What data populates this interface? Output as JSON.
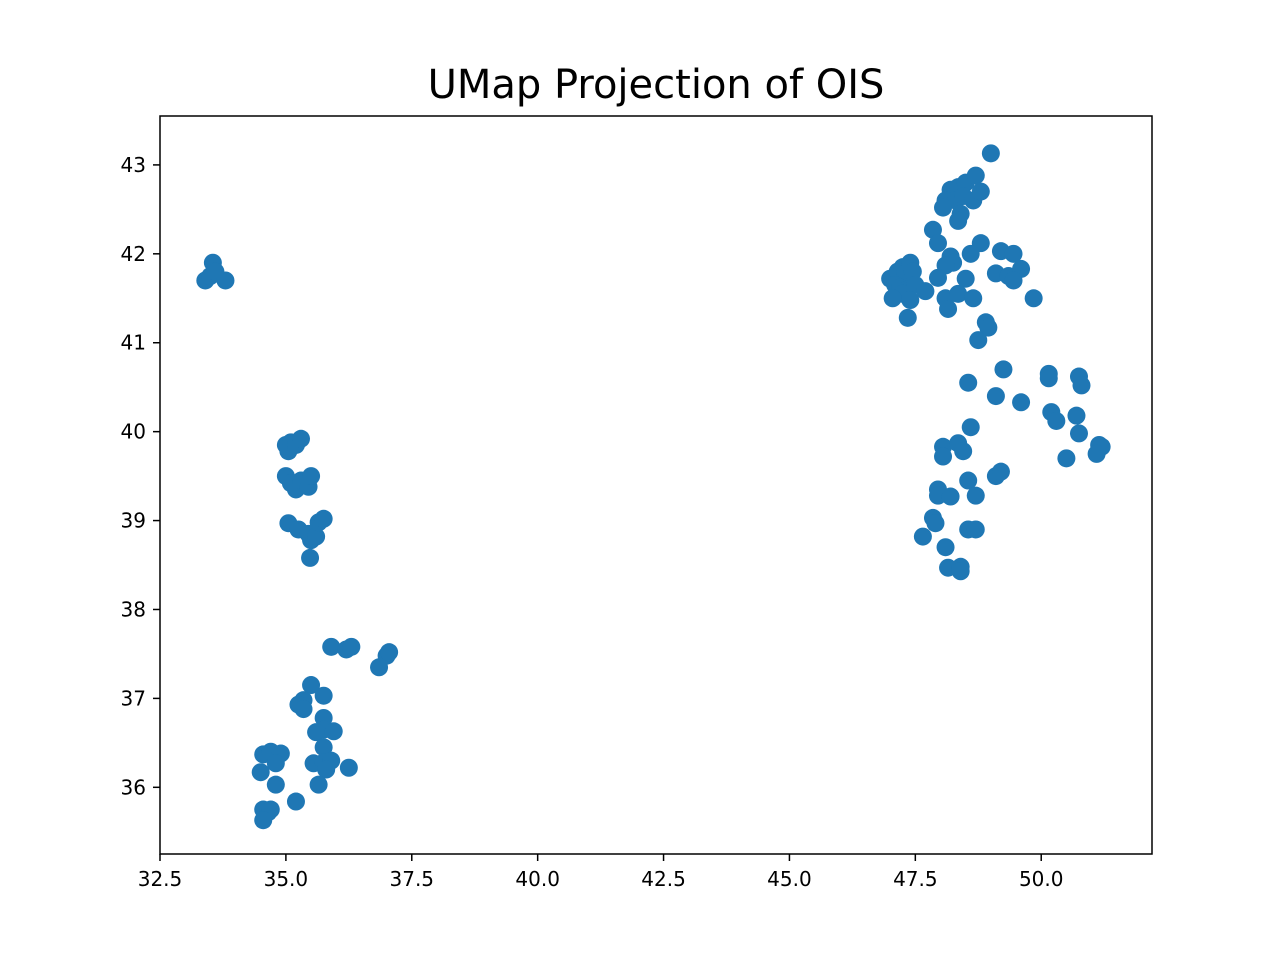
{
  "chart_data": {
    "type": "scatter",
    "title": "UMap Projection of OIS",
    "xlabel": "",
    "ylabel": "",
    "xlim": [
      32.5,
      52.2
    ],
    "ylim": [
      35.25,
      43.55
    ],
    "xticks": [
      "32.5",
      "35.0",
      "37.5",
      "40.0",
      "42.5",
      "45.0",
      "47.5",
      "50.0"
    ],
    "yticks": [
      "36",
      "37",
      "38",
      "39",
      "40",
      "41",
      "42",
      "43"
    ],
    "grid": false,
    "marker_color": "#1f77b4",
    "points": [
      [
        33.4,
        41.7
      ],
      [
        33.5,
        41.75
      ],
      [
        33.55,
        41.9
      ],
      [
        33.6,
        41.8
      ],
      [
        33.8,
        41.7
      ],
      [
        35.0,
        39.85
      ],
      [
        35.05,
        39.78
      ],
      [
        35.1,
        39.88
      ],
      [
        35.2,
        39.85
      ],
      [
        35.3,
        39.92
      ],
      [
        35.0,
        39.5
      ],
      [
        35.1,
        39.42
      ],
      [
        35.2,
        39.35
      ],
      [
        35.3,
        39.45
      ],
      [
        35.45,
        39.38
      ],
      [
        35.5,
        39.5
      ],
      [
        35.05,
        38.97
      ],
      [
        35.25,
        38.9
      ],
      [
        35.45,
        38.85
      ],
      [
        35.5,
        38.78
      ],
      [
        35.6,
        38.82
      ],
      [
        35.65,
        38.98
      ],
      [
        35.75,
        39.02
      ],
      [
        35.48,
        38.58
      ],
      [
        35.5,
        37.15
      ],
      [
        35.35,
        36.98
      ],
      [
        35.25,
        36.93
      ],
      [
        35.35,
        36.88
      ],
      [
        35.75,
        37.03
      ],
      [
        35.75,
        36.78
      ],
      [
        35.75,
        36.65
      ],
      [
        35.6,
        36.62
      ],
      [
        35.95,
        36.63
      ],
      [
        35.75,
        36.45
      ],
      [
        35.55,
        36.27
      ],
      [
        35.75,
        36.28
      ],
      [
        35.9,
        36.3
      ],
      [
        35.8,
        36.2
      ],
      [
        36.25,
        36.22
      ],
      [
        35.65,
        36.03
      ],
      [
        35.9,
        37.58
      ],
      [
        36.2,
        37.55
      ],
      [
        36.3,
        37.58
      ],
      [
        36.85,
        37.35
      ],
      [
        37.0,
        37.48
      ],
      [
        37.05,
        37.52
      ],
      [
        34.55,
        36.37
      ],
      [
        34.7,
        36.4
      ],
      [
        34.9,
        36.38
      ],
      [
        34.8,
        36.27
      ],
      [
        34.5,
        36.17
      ],
      [
        34.8,
        36.03
      ],
      [
        35.2,
        35.84
      ],
      [
        34.55,
        35.75
      ],
      [
        34.65,
        35.72
      ],
      [
        34.7,
        35.75
      ],
      [
        34.55,
        35.63
      ],
      [
        49.0,
        43.13
      ],
      [
        48.2,
        42.72
      ],
      [
        48.35,
        42.75
      ],
      [
        48.5,
        42.8
      ],
      [
        48.7,
        42.88
      ],
      [
        48.1,
        42.6
      ],
      [
        48.3,
        42.6
      ],
      [
        48.45,
        42.65
      ],
      [
        48.65,
        42.6
      ],
      [
        48.8,
        42.7
      ],
      [
        48.05,
        42.52
      ],
      [
        48.4,
        42.45
      ],
      [
        48.35,
        42.37
      ],
      [
        47.85,
        42.27
      ],
      [
        47.95,
        42.12
      ],
      [
        48.8,
        42.12
      ],
      [
        48.2,
        41.97
      ],
      [
        48.6,
        42.0
      ],
      [
        48.25,
        41.9
      ],
      [
        48.1,
        41.87
      ],
      [
        47.95,
        41.73
      ],
      [
        48.5,
        41.72
      ],
      [
        48.1,
        41.5
      ],
      [
        48.35,
        41.55
      ],
      [
        48.65,
        41.5
      ],
      [
        48.15,
        41.38
      ],
      [
        47.0,
        41.72
      ],
      [
        47.15,
        41.8
      ],
      [
        47.25,
        41.85
      ],
      [
        47.3,
        41.78
      ],
      [
        47.4,
        41.9
      ],
      [
        47.45,
        41.8
      ],
      [
        47.1,
        41.65
      ],
      [
        47.2,
        41.62
      ],
      [
        47.35,
        41.6
      ],
      [
        47.5,
        41.65
      ],
      [
        47.25,
        41.55
      ],
      [
        47.05,
        41.5
      ],
      [
        47.4,
        41.48
      ],
      [
        47.7,
        41.58
      ],
      [
        47.35,
        41.28
      ],
      [
        49.2,
        42.03
      ],
      [
        49.45,
        42.0
      ],
      [
        49.1,
        41.78
      ],
      [
        49.35,
        41.75
      ],
      [
        49.6,
        41.83
      ],
      [
        49.45,
        41.7
      ],
      [
        49.85,
        41.5
      ],
      [
        48.9,
        41.23
      ],
      [
        48.95,
        41.17
      ],
      [
        48.75,
        41.03
      ],
      [
        49.25,
        40.7
      ],
      [
        50.15,
        40.65
      ],
      [
        50.15,
        40.6
      ],
      [
        50.75,
        40.62
      ],
      [
        50.8,
        40.52
      ],
      [
        48.55,
        40.55
      ],
      [
        49.1,
        40.4
      ],
      [
        49.6,
        40.33
      ],
      [
        50.2,
        40.22
      ],
      [
        50.3,
        40.12
      ],
      [
        50.7,
        40.18
      ],
      [
        50.75,
        39.98
      ],
      [
        50.5,
        39.7
      ],
      [
        51.15,
        39.85
      ],
      [
        51.2,
        39.83
      ],
      [
        51.1,
        39.75
      ],
      [
        48.6,
        40.05
      ],
      [
        48.05,
        39.83
      ],
      [
        48.35,
        39.87
      ],
      [
        48.45,
        39.78
      ],
      [
        48.05,
        39.72
      ],
      [
        49.1,
        39.5
      ],
      [
        49.2,
        39.55
      ],
      [
        48.55,
        39.45
      ],
      [
        47.95,
        39.35
      ],
      [
        47.95,
        39.28
      ],
      [
        48.2,
        39.27
      ],
      [
        48.7,
        39.28
      ],
      [
        47.85,
        39.03
      ],
      [
        47.9,
        38.97
      ],
      [
        48.55,
        38.9
      ],
      [
        48.7,
        38.9
      ],
      [
        47.65,
        38.82
      ],
      [
        48.1,
        38.7
      ],
      [
        48.15,
        38.47
      ],
      [
        48.4,
        38.48
      ],
      [
        48.4,
        38.43
      ]
    ]
  }
}
